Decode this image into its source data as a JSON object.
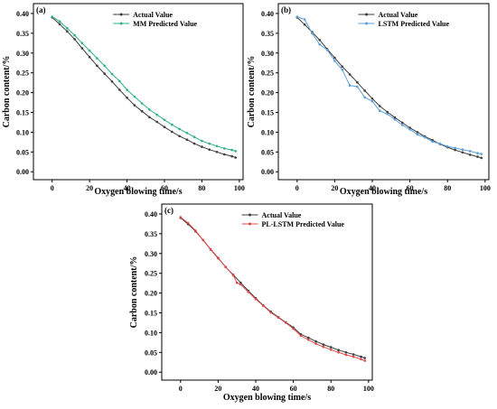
{
  "chart_data": [
    {
      "type": "line",
      "panel_label": "(a)",
      "xlabel": "Oxygen blowing time/s",
      "ylabel": "Carbon content/%",
      "xlim": [
        -10,
        102
      ],
      "ylim": [
        -0.02,
        0.425
      ],
      "xticks": [
        "0",
        "20",
        "40",
        "60",
        "80",
        "100"
      ],
      "yticks": [
        "0.00",
        "0.05",
        "0.10",
        "0.15",
        "0.20",
        "0.25",
        "0.30",
        "0.35",
        "0.40"
      ],
      "legend_position": "top-right",
      "series": [
        {
          "name": "Actual Value",
          "color": "#3c3c3c",
          "x": [
            0,
            4,
            8,
            12,
            16,
            20,
            24,
            28,
            32,
            36,
            40,
            44,
            48,
            52,
            56,
            60,
            64,
            68,
            72,
            76,
            80,
            84,
            88,
            92,
            96,
            98
          ],
          "values": [
            0.39,
            0.373,
            0.355,
            0.335,
            0.312,
            0.29,
            0.268,
            0.248,
            0.228,
            0.207,
            0.187,
            0.168,
            0.153,
            0.138,
            0.126,
            0.113,
            0.101,
            0.09,
            0.081,
            0.071,
            0.063,
            0.056,
            0.05,
            0.044,
            0.039,
            0.036
          ]
        },
        {
          "name": "MM Predicted Value",
          "color": "#2eb08a",
          "x": [
            0,
            4,
            8,
            12,
            16,
            20,
            24,
            28,
            32,
            36,
            40,
            44,
            48,
            52,
            56,
            60,
            64,
            68,
            72,
            76,
            80,
            84,
            88,
            92,
            96,
            98
          ],
          "values": [
            0.392,
            0.38,
            0.363,
            0.345,
            0.325,
            0.306,
            0.287,
            0.268,
            0.247,
            0.229,
            0.207,
            0.19,
            0.173,
            0.157,
            0.144,
            0.131,
            0.119,
            0.108,
            0.098,
            0.088,
            0.078,
            0.071,
            0.065,
            0.059,
            0.055,
            0.052
          ]
        }
      ]
    },
    {
      "type": "line",
      "panel_label": "(b)",
      "xlabel": "Oxygen blowing time/s",
      "ylabel": "Carbon content/%",
      "xlim": [
        -10,
        102
      ],
      "ylim": [
        -0.02,
        0.425
      ],
      "xticks": [
        "0",
        "20",
        "40",
        "60",
        "80",
        "100"
      ],
      "yticks": [
        "0.00",
        "0.05",
        "0.10",
        "0.15",
        "0.20",
        "0.25",
        "0.30",
        "0.35",
        "0.40"
      ],
      "legend_position": "top-right",
      "series": [
        {
          "name": "Actual Value",
          "color": "#3c3c3c",
          "x": [
            0,
            4,
            8,
            12,
            16,
            20,
            24,
            28,
            32,
            36,
            40,
            44,
            48,
            52,
            56,
            60,
            64,
            68,
            72,
            76,
            80,
            84,
            88,
            92,
            96,
            98
          ],
          "values": [
            0.39,
            0.372,
            0.353,
            0.333,
            0.31,
            0.288,
            0.266,
            0.246,
            0.226,
            0.205,
            0.185,
            0.166,
            0.151,
            0.137,
            0.124,
            0.111,
            0.1,
            0.089,
            0.08,
            0.07,
            0.062,
            0.055,
            0.049,
            0.043,
            0.038,
            0.035
          ]
        },
        {
          "name": "LSTM Predicted Value",
          "color": "#5b9fd8",
          "x": [
            0,
            4,
            8,
            12,
            16,
            20,
            24,
            28,
            32,
            36,
            40,
            44,
            48,
            52,
            56,
            60,
            64,
            68,
            72,
            76,
            80,
            84,
            88,
            92,
            96,
            98
          ],
          "values": [
            0.392,
            0.385,
            0.35,
            0.322,
            0.308,
            0.28,
            0.258,
            0.218,
            0.215,
            0.188,
            0.178,
            0.154,
            0.146,
            0.132,
            0.118,
            0.107,
            0.094,
            0.087,
            0.076,
            0.071,
            0.064,
            0.06,
            0.056,
            0.052,
            0.047,
            0.045
          ]
        }
      ]
    },
    {
      "type": "line",
      "panel_label": "(c)",
      "xlabel": "Oxygen blowing time/s",
      "ylabel": "Carbon content/%",
      "xlim": [
        -10,
        102
      ],
      "ylim": [
        -0.02,
        0.425
      ],
      "xticks": [
        "0",
        "20",
        "40",
        "60",
        "80",
        "100"
      ],
      "yticks": [
        "0.00",
        "0.05",
        "0.10",
        "0.15",
        "0.20",
        "0.25",
        "0.30",
        "0.35",
        "0.40"
      ],
      "legend_position": "top-right",
      "series": [
        {
          "name": "Actual Value",
          "color": "#3c3c3c",
          "x": [
            0,
            4,
            8,
            12,
            16,
            20,
            24,
            28,
            32,
            36,
            40,
            44,
            48,
            52,
            56,
            60,
            64,
            68,
            72,
            76,
            80,
            84,
            88,
            92,
            96,
            98
          ],
          "values": [
            0.39,
            0.374,
            0.356,
            0.334,
            0.31,
            0.288,
            0.266,
            0.246,
            0.226,
            0.206,
            0.187,
            0.169,
            0.153,
            0.139,
            0.126,
            0.113,
            0.096,
            0.087,
            0.078,
            0.07,
            0.063,
            0.056,
            0.05,
            0.045,
            0.039,
            0.036
          ]
        },
        {
          "name": "PL-LSTM Predicted Value",
          "color": "#e04848",
          "x": [
            0,
            4,
            8,
            12,
            16,
            20,
            24,
            28,
            30,
            32,
            36,
            40,
            44,
            48,
            52,
            56,
            60,
            64,
            68,
            72,
            76,
            80,
            84,
            88,
            92,
            96,
            98
          ],
          "values": [
            0.392,
            0.377,
            0.358,
            0.334,
            0.311,
            0.289,
            0.266,
            0.245,
            0.226,
            0.222,
            0.203,
            0.185,
            0.168,
            0.151,
            0.138,
            0.125,
            0.11,
            0.092,
            0.082,
            0.072,
            0.064,
            0.057,
            0.05,
            0.044,
            0.039,
            0.033,
            0.029
          ]
        }
      ]
    }
  ]
}
